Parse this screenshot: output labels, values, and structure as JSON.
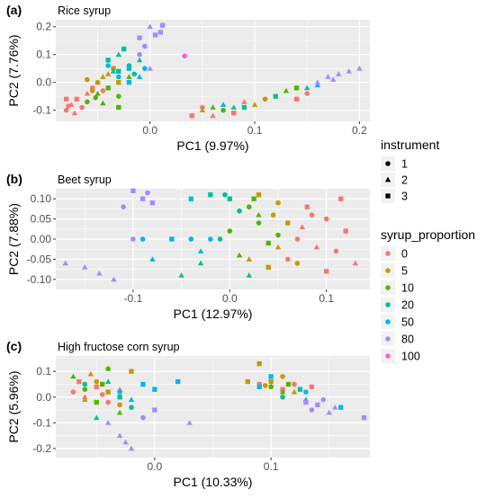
{
  "legend": {
    "shape_title": "instrument",
    "shape_items": [
      {
        "label": "1",
        "shape": "circle"
      },
      {
        "label": "2",
        "shape": "triangle"
      },
      {
        "label": "3",
        "shape": "square"
      }
    ],
    "color_title": "syrup_proportion",
    "color_items": [
      {
        "label": "0",
        "color": "#F8766D"
      },
      {
        "label": "5",
        "color": "#C49A00"
      },
      {
        "label": "10",
        "color": "#53B400"
      },
      {
        "label": "20",
        "color": "#00C094"
      },
      {
        "label": "50",
        "color": "#00B6EB"
      },
      {
        "label": "80",
        "color": "#A58AFF"
      },
      {
        "label": "100",
        "color": "#FB61D7"
      }
    ]
  },
  "chart_data": [
    {
      "type": "scatter",
      "panel_label": "(a)",
      "title": "Rice syrup",
      "xlabel": "PC1 (9.97%)",
      "ylabel": "PC2 (7.76%)",
      "xlim": [
        -0.09,
        0.21
      ],
      "ylim": [
        -0.14,
        0.225
      ],
      "xticks": [
        0.0,
        0.1,
        0.2
      ],
      "xtick_labels": [
        "0.0",
        "0.1",
        "0.2"
      ],
      "yticks": [
        -0.1,
        0.0,
        0.1,
        0.2
      ],
      "ytick_labels": [
        "-0.1",
        "0.0",
        "0.1",
        "0.2"
      ],
      "grid": true,
      "legend": "right",
      "points": [
        [
          -0.08,
          -0.1,
          0,
          1
        ],
        [
          -0.075,
          -0.08,
          0,
          2
        ],
        [
          -0.07,
          -0.06,
          0,
          3
        ],
        [
          -0.065,
          -0.09,
          0,
          1
        ],
        [
          -0.06,
          -0.04,
          0,
          2
        ],
        [
          -0.055,
          -0.02,
          0,
          1
        ],
        [
          -0.08,
          -0.06,
          0,
          3
        ],
        [
          -0.072,
          -0.11,
          0,
          2
        ],
        [
          -0.05,
          0.0,
          0,
          2
        ],
        [
          -0.045,
          -0.03,
          0,
          1
        ],
        [
          -0.078,
          -0.085,
          0,
          1
        ],
        [
          -0.05,
          0.0,
          1,
          1
        ],
        [
          -0.04,
          0.03,
          1,
          2
        ],
        [
          -0.035,
          0.05,
          1,
          3
        ],
        [
          -0.055,
          -0.03,
          1,
          1
        ],
        [
          -0.045,
          0.02,
          1,
          2
        ],
        [
          -0.03,
          0.0,
          1,
          3
        ],
        [
          -0.06,
          0.01,
          1,
          1
        ],
        [
          -0.06,
          -0.07,
          2,
          1
        ],
        [
          -0.05,
          -0.04,
          2,
          2
        ],
        [
          -0.04,
          -0.02,
          2,
          3
        ],
        [
          -0.03,
          -0.05,
          2,
          1
        ],
        [
          -0.02,
          0.02,
          2,
          2
        ],
        [
          -0.03,
          -0.09,
          2,
          3
        ],
        [
          -0.045,
          -0.075,
          2,
          2
        ],
        [
          -0.052,
          -0.055,
          2,
          1
        ],
        [
          -0.04,
          0.08,
          3,
          3
        ],
        [
          -0.03,
          0.1,
          3,
          2
        ],
        [
          -0.02,
          0.06,
          3,
          1
        ],
        [
          -0.03,
          0.04,
          3,
          3
        ],
        [
          -0.01,
          0.08,
          3,
          2
        ],
        [
          -0.025,
          0.12,
          3,
          3
        ],
        [
          -0.015,
          0.03,
          3,
          1
        ],
        [
          -0.03,
          0.02,
          4,
          1
        ],
        [
          -0.02,
          0.05,
          4,
          3
        ],
        [
          -0.01,
          0.02,
          4,
          2
        ],
        [
          -0.04,
          0.06,
          4,
          1
        ],
        [
          -0.02,
          0.0,
          4,
          3
        ],
        [
          -0.005,
          0.05,
          4,
          1
        ],
        [
          -0.035,
          0.04,
          4,
          2
        ],
        [
          -0.01,
          0.16,
          5,
          3
        ],
        [
          0.0,
          0.2,
          5,
          2
        ],
        [
          0.01,
          0.18,
          5,
          3
        ],
        [
          -0.01,
          0.1,
          5,
          1
        ],
        [
          0.0,
          0.05,
          5,
          2
        ],
        [
          0.005,
          0.17,
          5,
          3
        ],
        [
          0.012,
          0.205,
          5,
          3
        ],
        [
          -0.005,
          0.13,
          5,
          1
        ],
        [
          0.033,
          0.095,
          6,
          1
        ],
        [
          0.06,
          -0.12,
          0,
          2
        ],
        [
          0.05,
          -0.09,
          0,
          1
        ],
        [
          0.04,
          -0.12,
          0,
          3
        ],
        [
          0.07,
          -0.08,
          0,
          2
        ],
        [
          0.08,
          -0.11,
          0,
          3
        ],
        [
          0.09,
          -0.07,
          0,
          2
        ],
        [
          0.14,
          -0.06,
          0,
          3
        ],
        [
          0.15,
          -0.04,
          0,
          1
        ],
        [
          0.1,
          -0.08,
          1,
          2
        ],
        [
          0.11,
          -0.06,
          1,
          1
        ],
        [
          0.12,
          -0.05,
          1,
          3
        ],
        [
          0.05,
          -0.1,
          1,
          2
        ],
        [
          0.06,
          -0.09,
          2,
          2
        ],
        [
          0.07,
          -0.1,
          2,
          1
        ],
        [
          0.13,
          -0.03,
          2,
          2
        ],
        [
          0.14,
          -0.02,
          2,
          3
        ],
        [
          0.08,
          -0.09,
          3,
          2
        ],
        [
          0.09,
          -0.09,
          3,
          3
        ],
        [
          0.12,
          -0.05,
          3,
          1
        ],
        [
          0.15,
          -0.02,
          3,
          2
        ],
        [
          0.07,
          -0.08,
          4,
          2
        ],
        [
          0.16,
          -0.01,
          4,
          2
        ],
        [
          0.16,
          0.0,
          5,
          2
        ],
        [
          0.17,
          0.02,
          5,
          2
        ],
        [
          0.18,
          0.03,
          5,
          2
        ],
        [
          0.19,
          0.04,
          5,
          2
        ],
        [
          0.2,
          0.05,
          5,
          2
        ],
        [
          0.175,
          0.01,
          5,
          2
        ]
      ]
    },
    {
      "type": "scatter",
      "panel_label": "(b)",
      "title": "Beet syrup",
      "xlabel": "PC1 (12.97%)",
      "ylabel": "PC2 (7.88%)",
      "xlim": [
        -0.18,
        0.145
      ],
      "ylim": [
        -0.125,
        0.125
      ],
      "xticks": [
        -0.1,
        0.0,
        0.1
      ],
      "xtick_labels": [
        "-0.1",
        "0.0",
        "0.1"
      ],
      "yticks": [
        -0.1,
        -0.05,
        0.0,
        0.05,
        0.1
      ],
      "ytick_labels": [
        "-0.10",
        "-0.05",
        "0.00",
        "0.05",
        "0.10"
      ],
      "grid": true,
      "legend": "right",
      "points": [
        [
          0.08,
          0.08,
          0,
          3
        ],
        [
          0.1,
          0.05,
          0,
          1
        ],
        [
          0.12,
          0.02,
          0,
          3
        ],
        [
          0.07,
          0.0,
          0,
          1
        ],
        [
          0.09,
          -0.02,
          0,
          2
        ],
        [
          0.11,
          -0.03,
          0,
          1
        ],
        [
          0.13,
          -0.06,
          0,
          2
        ],
        [
          0.06,
          -0.05,
          0,
          1
        ],
        [
          0.1,
          -0.08,
          0,
          3
        ],
        [
          0.085,
          0.06,
          0,
          1
        ],
        [
          0.115,
          0.1,
          0,
          3
        ],
        [
          0.075,
          0.03,
          0,
          2
        ],
        [
          0.03,
          0.11,
          1,
          3
        ],
        [
          0.05,
          0.09,
          1,
          1
        ],
        [
          0.06,
          0.04,
          1,
          3
        ],
        [
          0.02,
          -0.05,
          1,
          2
        ],
        [
          0.04,
          -0.07,
          1,
          3
        ],
        [
          0.05,
          -0.02,
          1,
          2
        ],
        [
          0.07,
          -0.06,
          1,
          1
        ],
        [
          0.045,
          0.06,
          1,
          1
        ],
        [
          0.02,
          0.08,
          2,
          1
        ],
        [
          0.03,
          0.04,
          2,
          1
        ],
        [
          0.04,
          -0.01,
          2,
          3
        ],
        [
          0.01,
          -0.04,
          2,
          2
        ],
        [
          0.03,
          0.06,
          2,
          2
        ],
        [
          0.05,
          0.01,
          2,
          1
        ],
        [
          0.0,
          0.02,
          2,
          1
        ],
        [
          0.025,
          0.1,
          2,
          3
        ],
        [
          0.0,
          0.1,
          3,
          3
        ],
        [
          -0.02,
          0.11,
          3,
          3
        ],
        [
          0.01,
          0.07,
          3,
          1
        ],
        [
          -0.01,
          0.0,
          3,
          1
        ],
        [
          -0.05,
          -0.09,
          3,
          2
        ],
        [
          -0.03,
          -0.06,
          3,
          2
        ],
        [
          0.02,
          -0.09,
          3,
          2
        ],
        [
          -0.005,
          0.11,
          3,
          1
        ],
        [
          -0.04,
          0.0,
          4,
          1
        ],
        [
          -0.08,
          -0.05,
          4,
          2
        ],
        [
          -0.06,
          0.0,
          4,
          3
        ],
        [
          -0.04,
          0.1,
          4,
          3
        ],
        [
          -0.02,
          0.0,
          4,
          1
        ],
        [
          -0.09,
          0.0,
          4,
          1
        ],
        [
          -0.03,
          -0.03,
          4,
          2
        ],
        [
          -0.1,
          0.12,
          5,
          3
        ],
        [
          -0.09,
          0.1,
          5,
          3
        ],
        [
          -0.11,
          0.08,
          5,
          1
        ],
        [
          -0.1,
          0.0,
          5,
          1
        ],
        [
          -0.15,
          -0.07,
          5,
          2
        ],
        [
          -0.17,
          -0.06,
          5,
          2
        ],
        [
          -0.12,
          -0.1,
          5,
          2
        ],
        [
          -0.08,
          0.09,
          5,
          3
        ],
        [
          -0.085,
          0.115,
          5,
          1
        ],
        [
          -0.135,
          -0.085,
          5,
          2
        ]
      ]
    },
    {
      "type": "scatter",
      "panel_label": "(c)",
      "title": "High fructose corn syrup",
      "xlabel": "PC1 (10.33%)",
      "ylabel": "PC2 (5.96%)",
      "xlim": [
        -0.085,
        0.185
      ],
      "ylim": [
        -0.235,
        0.16
      ],
      "xticks": [
        0.0,
        0.1
      ],
      "xtick_labels": [
        "0.0",
        "0.1"
      ],
      "yticks": [
        -0.2,
        -0.1,
        0.0,
        0.1
      ],
      "ytick_labels": [
        "-0.2",
        "-0.1",
        "0.0",
        "0.1"
      ],
      "grid": true,
      "legend": "right",
      "points": [
        [
          -0.07,
          0.02,
          0,
          1
        ],
        [
          -0.06,
          0.0,
          0,
          2
        ],
        [
          -0.05,
          0.04,
          0,
          3
        ],
        [
          -0.04,
          -0.02,
          0,
          1
        ],
        [
          -0.03,
          0.03,
          0,
          2
        ],
        [
          -0.065,
          0.06,
          0,
          3
        ],
        [
          -0.045,
          0.01,
          0,
          1
        ],
        [
          -0.06,
          -0.01,
          1,
          2
        ],
        [
          -0.05,
          0.06,
          1,
          1
        ],
        [
          -0.04,
          0.02,
          1,
          3
        ],
        [
          -0.03,
          -0.03,
          1,
          1
        ],
        [
          -0.02,
          0.1,
          1,
          3
        ],
        [
          -0.055,
          0.09,
          1,
          2
        ],
        [
          -0.07,
          0.08,
          2,
          2
        ],
        [
          -0.06,
          0.03,
          2,
          1
        ],
        [
          -0.05,
          -0.02,
          2,
          3
        ],
        [
          -0.04,
          0.11,
          2,
          1
        ],
        [
          -0.03,
          -0.06,
          2,
          2
        ],
        [
          -0.045,
          0.05,
          2,
          3
        ],
        [
          -0.06,
          0.05,
          3,
          1
        ],
        [
          -0.04,
          0.06,
          3,
          2
        ],
        [
          -0.03,
          0.0,
          3,
          3
        ],
        [
          -0.02,
          -0.04,
          3,
          1
        ],
        [
          -0.05,
          -0.08,
          3,
          2
        ],
        [
          -0.03,
          0.02,
          4,
          1
        ],
        [
          -0.01,
          0.05,
          4,
          3
        ],
        [
          -0.02,
          -0.01,
          4,
          2
        ],
        [
          0.0,
          0.03,
          4,
          3
        ],
        [
          0.02,
          0.06,
          4,
          3
        ],
        [
          -0.04,
          -0.1,
          5,
          2
        ],
        [
          -0.03,
          -0.15,
          5,
          2
        ],
        [
          -0.02,
          -0.2,
          5,
          2
        ],
        [
          -0.01,
          -0.08,
          5,
          1
        ],
        [
          0.0,
          -0.05,
          5,
          3
        ],
        [
          0.03,
          -0.1,
          5,
          2
        ],
        [
          -0.025,
          -0.175,
          5,
          2
        ],
        [
          0.09,
          0.05,
          0,
          3
        ],
        [
          0.1,
          0.04,
          0,
          1
        ],
        [
          0.11,
          0.03,
          0,
          3
        ],
        [
          0.12,
          0.05,
          0,
          1
        ],
        [
          0.135,
          0.04,
          0,
          3
        ],
        [
          0.08,
          0.06,
          1,
          3
        ],
        [
          0.09,
          0.13,
          1,
          3
        ],
        [
          0.1,
          0.06,
          1,
          3
        ],
        [
          0.11,
          0.08,
          1,
          1
        ],
        [
          0.12,
          0.02,
          1,
          2
        ],
        [
          0.095,
          0.045,
          1,
          1
        ],
        [
          0.1,
          0.04,
          2,
          1
        ],
        [
          0.11,
          0.02,
          2,
          2
        ],
        [
          0.115,
          0.05,
          2,
          3
        ],
        [
          0.11,
          0.0,
          3,
          1
        ],
        [
          0.13,
          -0.01,
          3,
          2
        ],
        [
          0.125,
          0.03,
          3,
          3
        ],
        [
          0.09,
          0.04,
          4,
          3
        ],
        [
          0.13,
          0.02,
          4,
          1
        ],
        [
          0.16,
          -0.04,
          4,
          3
        ],
        [
          0.1,
          0.08,
          4,
          3
        ],
        [
          0.13,
          -0.02,
          5,
          3
        ],
        [
          0.14,
          -0.03,
          5,
          3
        ],
        [
          0.15,
          -0.06,
          5,
          2
        ],
        [
          0.18,
          -0.08,
          5,
          3
        ],
        [
          0.135,
          -0.05,
          5,
          1
        ],
        [
          0.145,
          -0.01,
          5,
          1
        ],
        [
          0.155,
          -0.04,
          5,
          2
        ]
      ]
    }
  ]
}
